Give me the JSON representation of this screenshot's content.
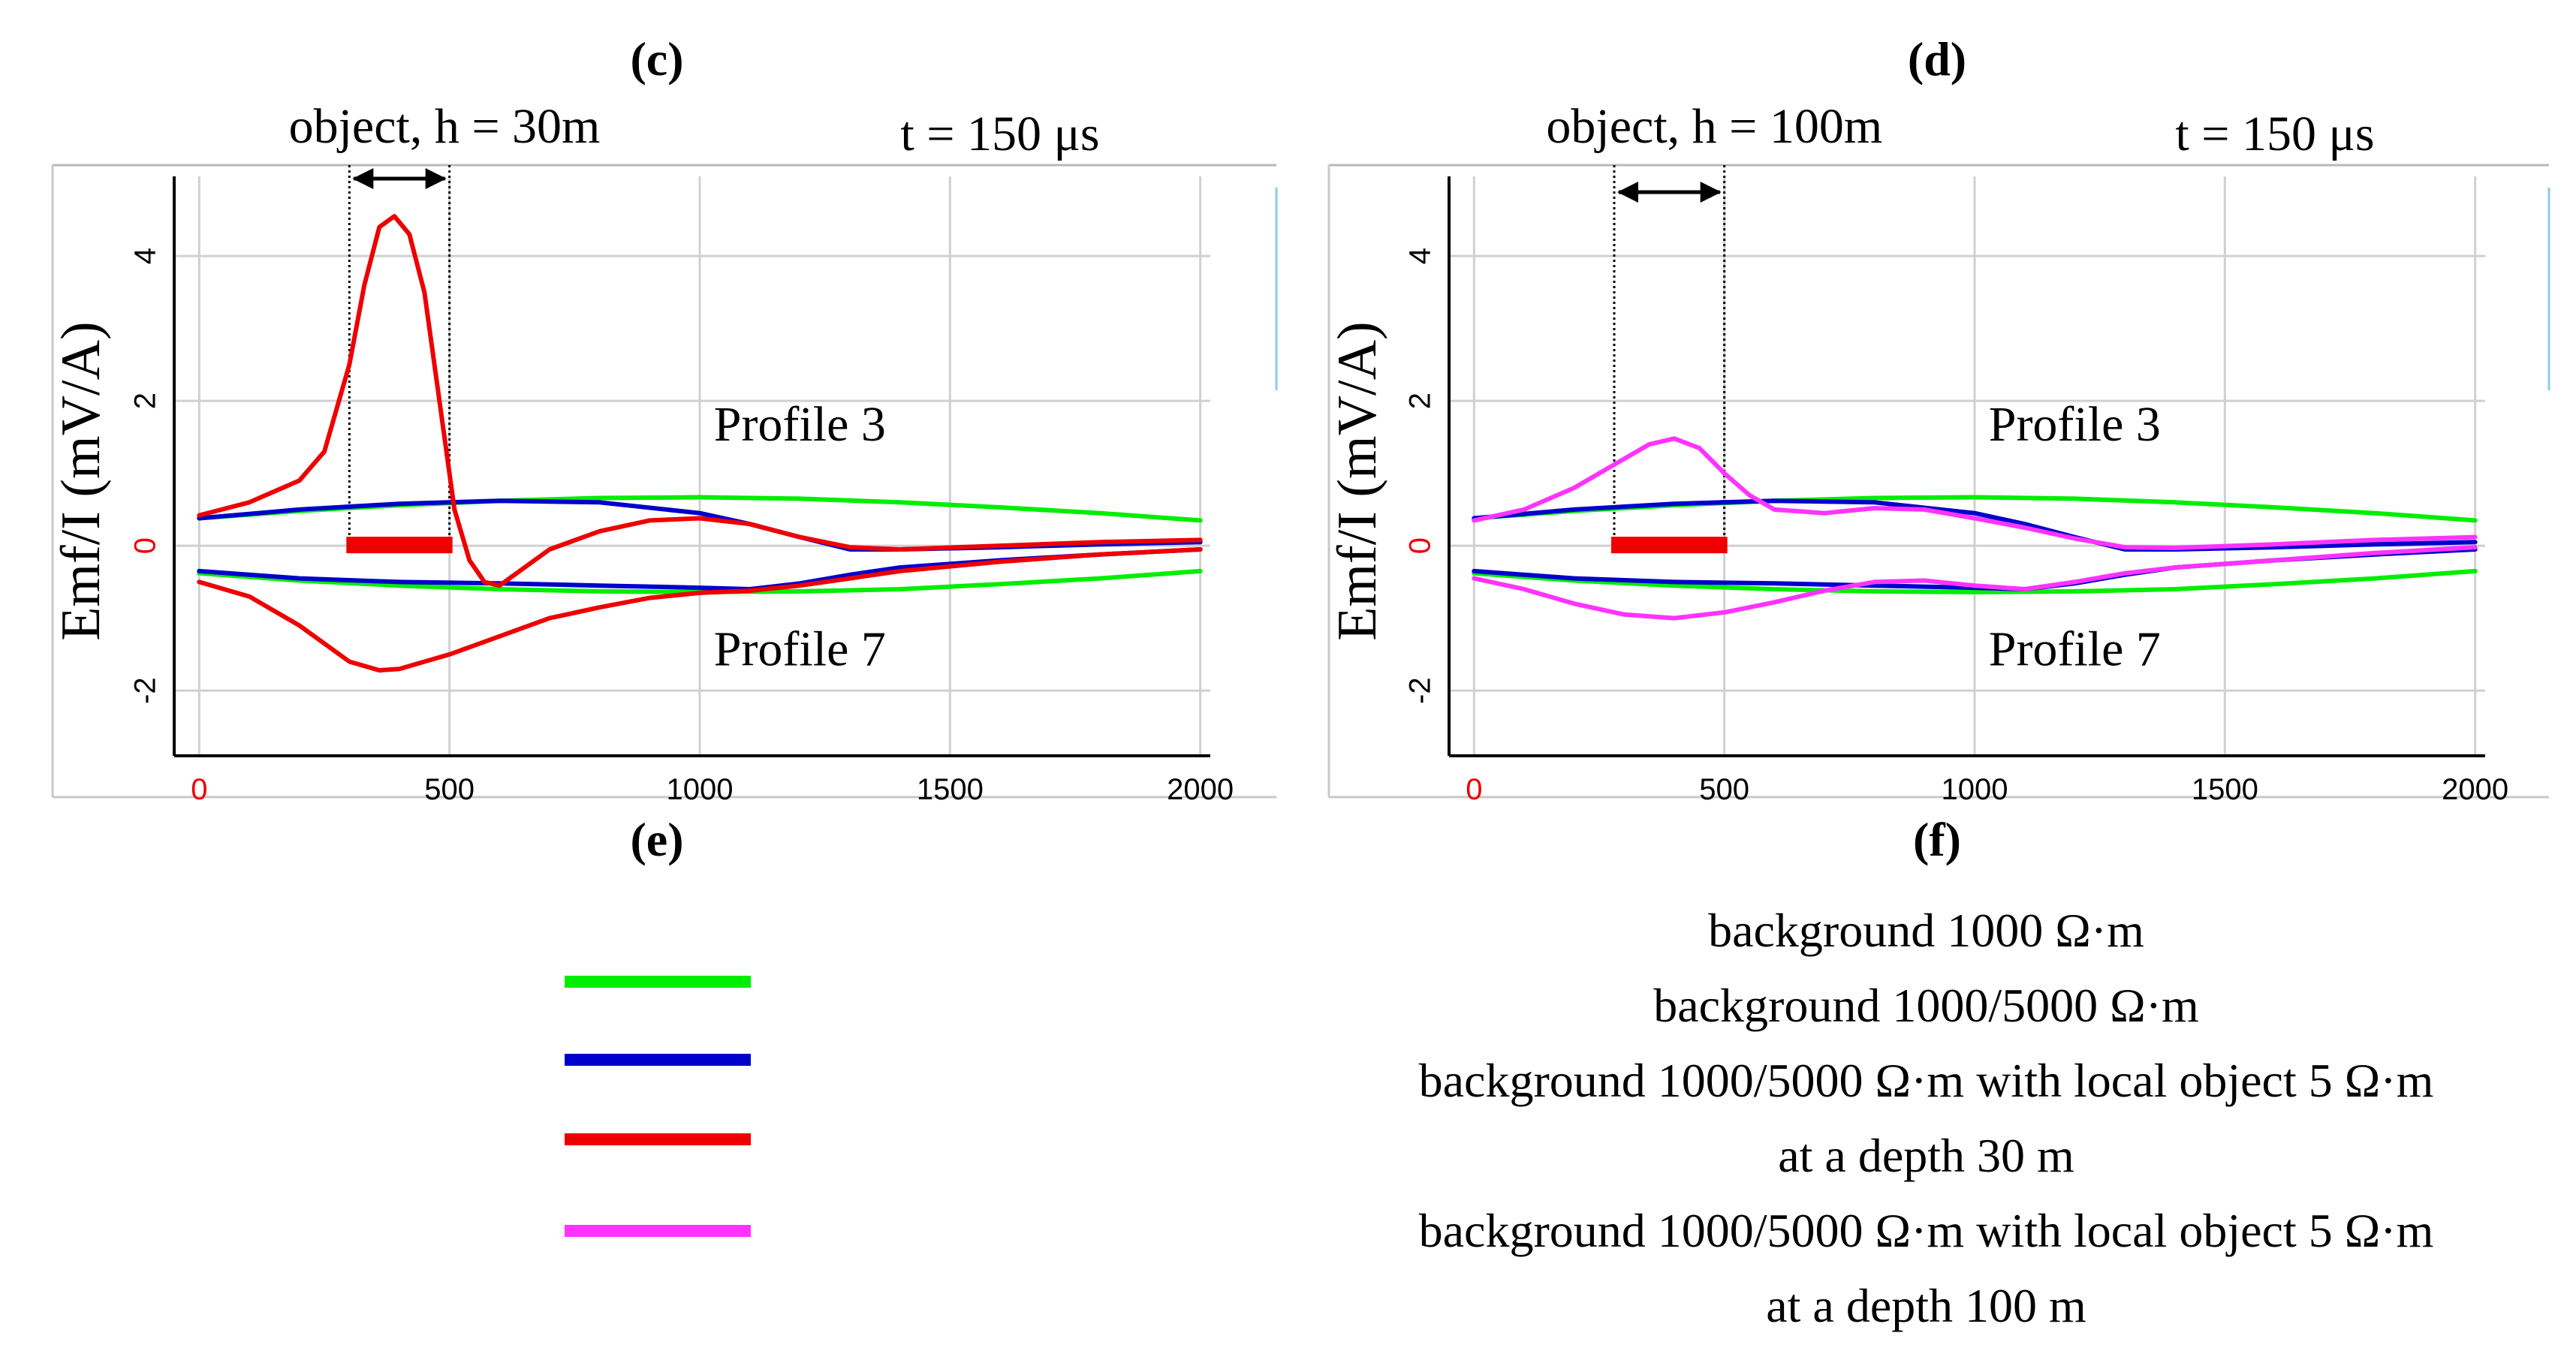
{
  "panels": [
    {
      "tag": "(c)",
      "ylabel": "Emf/I (mV/A)",
      "time_label": "t = 150 μs",
      "object_label": "object, h = 30m",
      "profile_upper": "Profile 3",
      "profile_lower": "Profile 7",
      "xticks": [
        "0",
        "500",
        "1000",
        "1500",
        "2000"
      ],
      "yticks": [
        "4",
        "2",
        "0",
        "-2"
      ],
      "object_range": [
        300,
        500
      ]
    },
    {
      "tag": "(d)",
      "ylabel": "Emf/I (mV/A)",
      "time_label": "t = 150 μs",
      "object_label": "object, h = 100m",
      "profile_upper": "Profile 3",
      "profile_lower": "Profile 7",
      "xticks": [
        "0",
        "500",
        "1000",
        "1500",
        "2000"
      ],
      "yticks": [
        "4",
        "2",
        "0",
        "-2"
      ],
      "object_range": [
        280,
        500
      ]
    }
  ],
  "panel_tags_lower": [
    "(e)",
    "(f)"
  ],
  "legend": [
    {
      "color": "#00ee00",
      "text": "background 1000 Ω·m"
    },
    {
      "color": "#0000cc",
      "text": "background 1000/5000 Ω·m"
    },
    {
      "color": "#ee0000",
      "text": "background 1000/5000 Ω·m with local object 5 Ω·m",
      "text2": "at a depth 30 m"
    },
    {
      "color": "#ff33ff",
      "text": "background 1000/5000 Ω·m with local object 5 Ω·m",
      "text2": "at a depth 100 m"
    }
  ],
  "colors": {
    "background_1000": "#00ee00",
    "background_1000_5000": "#0000cc",
    "object_30m": "#ee0000",
    "object_100m": "#ff33ff",
    "grid": "#d0d0d0",
    "zero_tick": "#ee0000"
  },
  "chart_data": [
    {
      "type": "line",
      "title": "(c)",
      "annotation": "t = 150 μs",
      "xlabel": "",
      "ylabel": "Emf/I (mV/A)",
      "xlim": [
        -50,
        2020
      ],
      "ylim": [
        -2.9,
        5.1
      ],
      "grid": true,
      "series": [
        {
          "name": "background 1000 Ω·m, Profile 3",
          "color": "#00ee00",
          "x": [
            0,
            200,
            400,
            600,
            800,
            1000,
            1200,
            1400,
            1600,
            1800,
            2000
          ],
          "y": [
            0.38,
            0.48,
            0.56,
            0.62,
            0.66,
            0.67,
            0.65,
            0.6,
            0.53,
            0.45,
            0.35
          ]
        },
        {
          "name": "background 1000/5000 Ω·m, Profile 3",
          "color": "#0000cc",
          "x": [
            0,
            200,
            400,
            600,
            800,
            1000,
            1100,
            1200,
            1300,
            1400,
            1600,
            1800,
            2000
          ],
          "y": [
            0.38,
            0.5,
            0.58,
            0.62,
            0.6,
            0.45,
            0.3,
            0.12,
            -0.05,
            -0.05,
            -0.02,
            0.02,
            0.05
          ]
        },
        {
          "name": "background 1000 Ω·m, Profile 7",
          "color": "#00ee00",
          "x": [
            0,
            200,
            400,
            600,
            800,
            1000,
            1200,
            1400,
            1600,
            1800,
            2000
          ],
          "y": [
            -0.38,
            -0.48,
            -0.55,
            -0.6,
            -0.63,
            -0.64,
            -0.63,
            -0.6,
            -0.53,
            -0.45,
            -0.35
          ]
        },
        {
          "name": "background 1000/5000 Ω·m, Profile 7",
          "color": "#0000cc",
          "x": [
            0,
            200,
            400,
            600,
            800,
            1000,
            1100,
            1200,
            1300,
            1400,
            1600,
            1800,
            2000
          ],
          "y": [
            -0.35,
            -0.45,
            -0.5,
            -0.52,
            -0.55,
            -0.58,
            -0.6,
            -0.52,
            -0.4,
            -0.3,
            -0.2,
            -0.12,
            -0.05
          ]
        },
        {
          "name": "local object 5 Ω·m at 30 m, Profile 3",
          "color": "#ee0000",
          "x": [
            0,
            100,
            200,
            250,
            300,
            330,
            360,
            390,
            420,
            450,
            480,
            510,
            540,
            570,
            600,
            650,
            700,
            800,
            900,
            1000,
            1100,
            1200,
            1300,
            1400,
            1600,
            1800,
            2000
          ],
          "y": [
            0.42,
            0.6,
            0.9,
            1.3,
            2.5,
            3.6,
            4.4,
            4.55,
            4.3,
            3.5,
            2.0,
            0.5,
            -0.2,
            -0.5,
            -0.55,
            -0.3,
            -0.05,
            0.2,
            0.35,
            0.38,
            0.3,
            0.12,
            -0.02,
            -0.05,
            0.0,
            0.05,
            0.08
          ]
        },
        {
          "name": "local object 5 Ω·m at 30 m, Profile 7",
          "color": "#ee0000",
          "x": [
            0,
            100,
            200,
            300,
            360,
            400,
            500,
            600,
            700,
            800,
            900,
            1000,
            1100,
            1200,
            1300,
            1400,
            1600,
            1800,
            2000
          ],
          "y": [
            -0.5,
            -0.7,
            -1.1,
            -1.6,
            -1.72,
            -1.7,
            -1.5,
            -1.25,
            -1.0,
            -0.85,
            -0.72,
            -0.65,
            -0.62,
            -0.55,
            -0.45,
            -0.35,
            -0.22,
            -0.12,
            -0.05
          ]
        }
      ]
    },
    {
      "type": "line",
      "title": "(d)",
      "annotation": "t = 150 μs",
      "xlabel": "",
      "ylabel": "Emf/I (mV/A)",
      "xlim": [
        -50,
        2020
      ],
      "ylim": [
        -2.9,
        5.1
      ],
      "grid": true,
      "series": [
        {
          "name": "background 1000 Ω·m, Profile 3",
          "color": "#00ee00",
          "x": [
            0,
            200,
            400,
            600,
            800,
            1000,
            1200,
            1400,
            1600,
            1800,
            2000
          ],
          "y": [
            0.38,
            0.48,
            0.56,
            0.62,
            0.66,
            0.67,
            0.65,
            0.6,
            0.53,
            0.45,
            0.35
          ]
        },
        {
          "name": "background 1000/5000 Ω·m, Profile 3",
          "color": "#0000cc",
          "x": [
            0,
            200,
            400,
            600,
            800,
            1000,
            1100,
            1200,
            1300,
            1400,
            1600,
            1800,
            2000
          ],
          "y": [
            0.38,
            0.5,
            0.58,
            0.62,
            0.6,
            0.45,
            0.3,
            0.12,
            -0.05,
            -0.05,
            -0.02,
            0.02,
            0.05
          ]
        },
        {
          "name": "background 1000 Ω·m, Profile 7",
          "color": "#00ee00",
          "x": [
            0,
            200,
            400,
            600,
            800,
            1000,
            1200,
            1400,
            1600,
            1800,
            2000
          ],
          "y": [
            -0.38,
            -0.48,
            -0.55,
            -0.6,
            -0.63,
            -0.64,
            -0.63,
            -0.6,
            -0.53,
            -0.45,
            -0.35
          ]
        },
        {
          "name": "background 1000/5000 Ω·m, Profile 7",
          "color": "#0000cc",
          "x": [
            0,
            200,
            400,
            600,
            800,
            1000,
            1100,
            1200,
            1300,
            1400,
            1600,
            1800,
            2000
          ],
          "y": [
            -0.35,
            -0.45,
            -0.5,
            -0.52,
            -0.55,
            -0.58,
            -0.6,
            -0.52,
            -0.4,
            -0.3,
            -0.2,
            -0.12,
            -0.05
          ]
        },
        {
          "name": "local object 5 Ω·m at 100 m, Profile 3",
          "color": "#ff33ff",
          "x": [
            0,
            100,
            200,
            300,
            350,
            400,
            450,
            500,
            550,
            600,
            700,
            800,
            900,
            1000,
            1100,
            1200,
            1300,
            1400,
            1600,
            1800,
            2000
          ],
          "y": [
            0.35,
            0.5,
            0.8,
            1.2,
            1.4,
            1.48,
            1.35,
            1.0,
            0.7,
            0.5,
            0.45,
            0.52,
            0.5,
            0.38,
            0.25,
            0.1,
            -0.02,
            -0.03,
            0.02,
            0.08,
            0.12
          ]
        },
        {
          "name": "local object 5 Ω·m at 100 m, Profile 7",
          "color": "#ff33ff",
          "x": [
            0,
            100,
            200,
            300,
            400,
            500,
            600,
            700,
            800,
            900,
            1000,
            1100,
            1200,
            1300,
            1400,
            1600,
            1800,
            2000
          ],
          "y": [
            -0.45,
            -0.6,
            -0.8,
            -0.95,
            -1.0,
            -0.92,
            -0.78,
            -0.62,
            -0.5,
            -0.48,
            -0.55,
            -0.6,
            -0.5,
            -0.38,
            -0.3,
            -0.2,
            -0.1,
            -0.02
          ]
        }
      ]
    }
  ]
}
